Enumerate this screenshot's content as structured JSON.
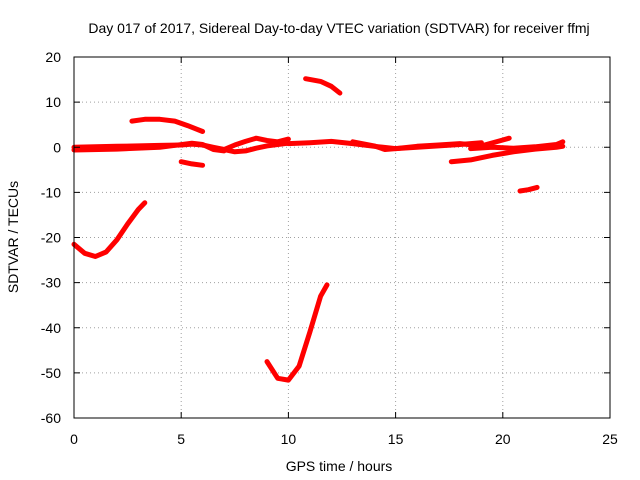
{
  "chart_data": {
    "type": "line",
    "title": "Day 017 of 2017, Sidereal Day-to-day VTEC variation (SDTVAR) for receiver ffmj",
    "xlabel": "GPS time / hours",
    "ylabel": "SDTVAR / TECUs",
    "xlim": [
      0,
      25
    ],
    "ylim": [
      -60,
      20
    ],
    "xticks": [
      0,
      5,
      10,
      15,
      20,
      25
    ],
    "xtick_labels": [
      "0",
      "5",
      "10",
      "15",
      "20",
      "25"
    ],
    "yticks": [
      -60,
      -50,
      -40,
      -30,
      -20,
      -10,
      0,
      10,
      20
    ],
    "ytick_labels": [
      "-60",
      "-50",
      "-40",
      "-30",
      "-20",
      "-10",
      "0",
      "10",
      "20"
    ],
    "grid": true,
    "legend": "none",
    "color": "#ff0000",
    "series": [
      {
        "x": [
          0.0,
          0.5,
          1.0,
          1.5,
          2.0,
          2.5,
          3.0,
          3.3
        ],
        "y": [
          -21.5,
          -23.5,
          -24.2,
          -23.2,
          -20.5,
          -17.0,
          -13.8,
          -12.3
        ]
      },
      {
        "x": [
          2.7,
          3.3,
          4.0,
          4.7,
          5.3,
          6.0
        ],
        "y": [
          5.8,
          6.2,
          6.2,
          5.8,
          4.8,
          3.5
        ]
      },
      {
        "x": [
          5.0,
          5.5,
          6.0
        ],
        "y": [
          -3.2,
          -3.7,
          -4.0
        ]
      },
      {
        "x": [
          0.0,
          1.0,
          2.0,
          3.0,
          4.0,
          5.0,
          5.5,
          6.0,
          6.5,
          7.0,
          7.5,
          8.0,
          8.5,
          9.0,
          9.5,
          10.0
        ],
        "y": [
          0.0,
          0.1,
          0.2,
          0.3,
          0.4,
          0.5,
          0.7,
          0.5,
          0.0,
          -0.5,
          -1.0,
          -0.8,
          -0.2,
          0.3,
          0.6,
          0.9
        ]
      },
      {
        "x": [
          0.0,
          2.0,
          4.0,
          5.5,
          6.0,
          6.5,
          7.0
        ],
        "y": [
          -0.6,
          -0.4,
          0.0,
          0.9,
          0.6,
          -0.5,
          -0.8
        ]
      },
      {
        "x": [
          7.0,
          7.5,
          8.0,
          8.5,
          9.0,
          9.5,
          10.0
        ],
        "y": [
          -0.5,
          0.5,
          1.3,
          2.0,
          1.5,
          1.2,
          1.8
        ]
      },
      {
        "x": [
          9.0,
          9.5,
          10.0,
          10.5,
          11.0,
          11.5,
          11.8
        ],
        "y": [
          -47.5,
          -51.2,
          -51.6,
          -48.5,
          -41.0,
          -33.0,
          -30.5
        ]
      },
      {
        "x": [
          10.8,
          11.5,
          12.0,
          12.4
        ],
        "y": [
          15.2,
          14.6,
          13.5,
          12.0
        ]
      },
      {
        "x": [
          10.0,
          11.0,
          12.0,
          13.0,
          14.0,
          15.0,
          16.0,
          17.0,
          18.0,
          19.0,
          20.0,
          20.3
        ],
        "y": [
          0.8,
          1.0,
          1.3,
          0.8,
          0.2,
          -0.3,
          0.2,
          0.5,
          0.8,
          0.3,
          1.6,
          2.0
        ]
      },
      {
        "x": [
          13.0,
          14.0,
          14.5,
          15.0,
          16.0,
          17.0,
          18.0,
          19.0
        ],
        "y": [
          1.2,
          0.3,
          -0.5,
          -0.3,
          0.0,
          0.3,
          0.6,
          1.0
        ]
      },
      {
        "x": [
          17.6,
          18.5,
          19.5,
          20.5,
          21.5,
          22.5,
          22.8
        ],
        "y": [
          -3.2,
          -2.8,
          -1.8,
          -1.0,
          -0.4,
          0.0,
          0.2
        ]
      },
      {
        "x": [
          18.5,
          19.5,
          20.5,
          21.5,
          22.5,
          22.8
        ],
        "y": [
          -0.3,
          0.0,
          -0.2,
          0.1,
          0.6,
          1.2
        ]
      },
      {
        "x": [
          20.8,
          21.2,
          21.6
        ],
        "y": [
          -9.7,
          -9.4,
          -8.9
        ]
      }
    ]
  }
}
